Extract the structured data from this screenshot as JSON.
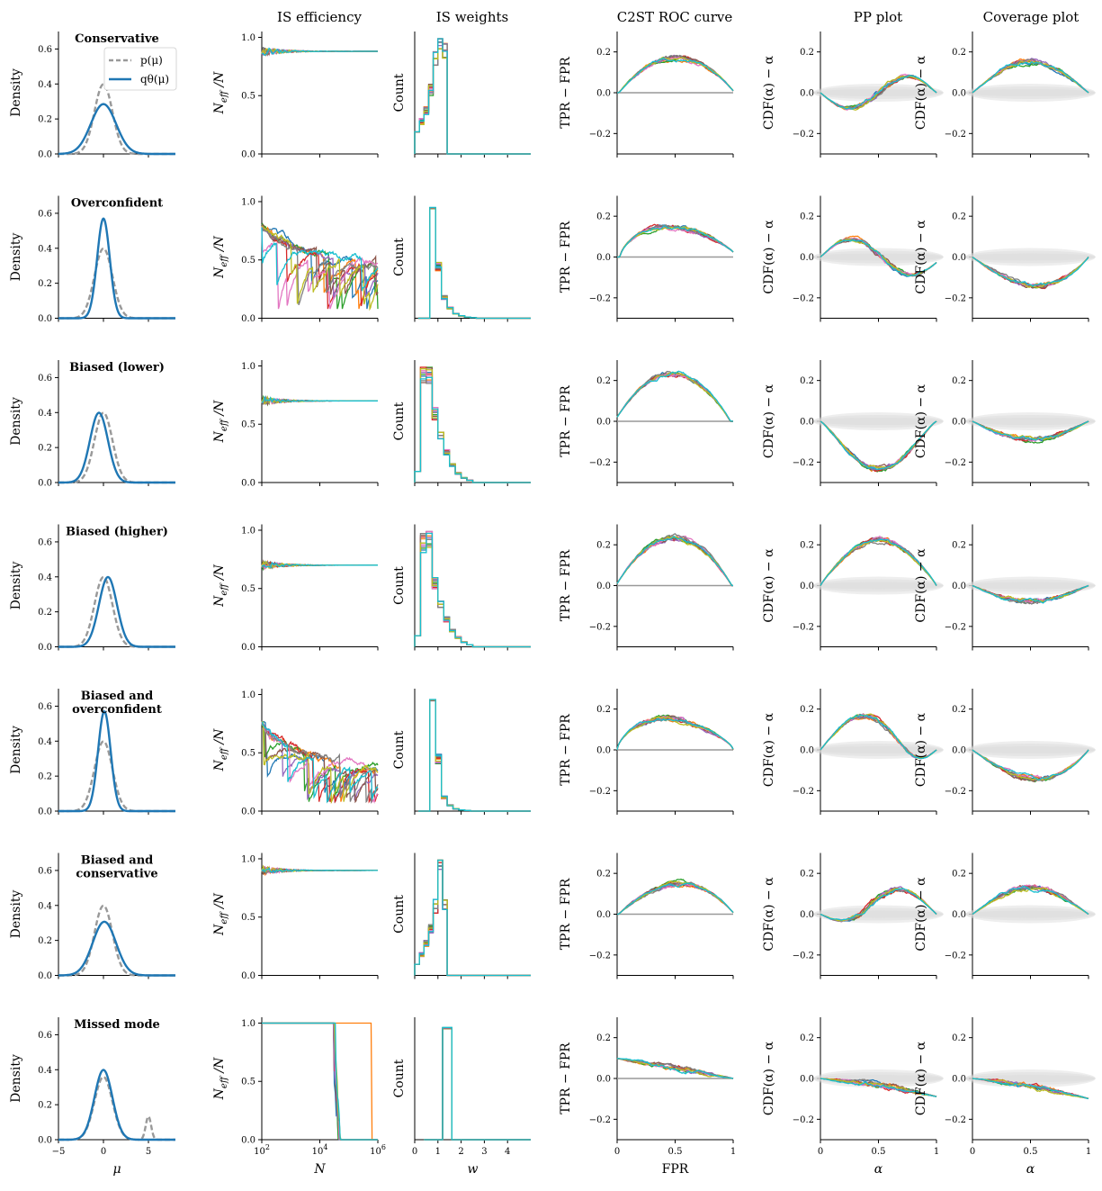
{
  "colors": {
    "prior": "#999999",
    "posterior": "#1f77b4",
    "zero_line": "#999999",
    "band": "#d9d9d9",
    "palette": [
      "#1f77b4",
      "#ff7f0e",
      "#2ca02c",
      "#d62728",
      "#9467bd",
      "#8c564b",
      "#e377c2",
      "#7f7f7f",
      "#bcbd22",
      "#17becf"
    ]
  },
  "column_titles": [
    "",
    "IS efficiency",
    "IS weights",
    "C2ST ROC curve",
    "PP plot",
    "Coverage plot"
  ],
  "legend": {
    "prior": "p(μ)",
    "posterior": "qθ(μ)"
  },
  "rows": [
    {
      "title": [
        "Conservative"
      ]
    },
    {
      "title": [
        "Overconfident"
      ]
    },
    {
      "title": [
        "Biased (lower)"
      ]
    },
    {
      "title": [
        "Biased (higher)"
      ]
    },
    {
      "title": [
        "Biased and",
        "overconfident"
      ]
    },
    {
      "title": [
        "Biased and",
        "conservative"
      ]
    },
    {
      "title": [
        "Missed mode"
      ]
    }
  ],
  "chart_data": [
    {
      "type": "line",
      "panel": "density",
      "ylabel": "Density",
      "xlabel": "μ",
      "xlim": [
        -5,
        8
      ],
      "ylim": [
        0,
        0.7
      ],
      "xticks": [
        "−5",
        "0",
        "5"
      ],
      "yticks": [
        "0.0",
        "0.2",
        "0.4",
        "0.6"
      ],
      "prior": "N(0, 1)",
      "series_by_row": [
        {
          "name": "qθ(μ)",
          "mean": 0,
          "sd": 1.4
        },
        {
          "name": "qθ(μ)",
          "mean": 0,
          "sd": 0.7
        },
        {
          "name": "qθ(μ)",
          "mean": -0.5,
          "sd": 1.0
        },
        {
          "name": "qθ(μ)",
          "mean": 0.5,
          "sd": 1.0
        },
        {
          "name": "qθ(μ)",
          "mean": 0.1,
          "sd": 0.7
        },
        {
          "name": "qθ(μ)",
          "mean": 0.1,
          "sd": 1.3
        },
        {
          "name": "qθ(μ)",
          "mean": 0,
          "sd": 1.0
        }
      ],
      "missed_mode_prior": {
        "weights": [
          0.9,
          0.1
        ],
        "means": [
          0,
          5
        ],
        "sds": [
          1,
          0.3
        ]
      }
    },
    {
      "type": "line",
      "panel": "is_efficiency",
      "ylabel": "Neff/N",
      "xlabel": "N",
      "xscale": "log",
      "xlim": [
        100,
        1000000
      ],
      "ylim": [
        0,
        1.05
      ],
      "yticks": [
        "0.0",
        "0.5",
        "1.0"
      ],
      "series_count": 10,
      "asymptote_by_row": [
        0.88,
        0.45,
        0.7,
        0.7,
        0.35,
        0.9,
        null
      ]
    },
    {
      "type": "bar",
      "panel": "is_weights",
      "ylabel": "Count",
      "xlabel": "w",
      "xlim": [
        0,
        5
      ],
      "xticks": [
        "0",
        "1",
        "2",
        "3",
        "4"
      ],
      "series_count": 10
    },
    {
      "type": "line",
      "panel": "c2st_roc",
      "ylabel": "TPR − FPR",
      "xlabel": "FPR",
      "xlim": [
        0,
        1
      ],
      "ylim": [
        -0.3,
        0.3
      ],
      "xticks": [
        "0",
        "0.5",
        "1"
      ],
      "yticks": [
        "−0.2",
        "0.0",
        "0.2"
      ],
      "series_count": 10,
      "peak_by_row": [
        0.18,
        0.19,
        0.24,
        0.24,
        0.19,
        0.15,
        0.1
      ]
    },
    {
      "type": "line",
      "panel": "pp_plot",
      "ylabel": "CDF(α) − α",
      "xlabel": "α",
      "xlim": [
        0,
        1
      ],
      "ylim": [
        -0.3,
        0.3
      ],
      "xticks": [
        "0",
        "0.5",
        "1"
      ],
      "yticks": [
        "−0.2",
        "0.0",
        "0.2"
      ],
      "series_count": 10
    },
    {
      "type": "line",
      "panel": "coverage_plot",
      "ylabel": "CDF(α) − α",
      "xlabel": "α",
      "xlim": [
        0,
        1
      ],
      "ylim": [
        -0.3,
        0.3
      ],
      "xticks": [
        "0",
        "0.5",
        "1"
      ],
      "yticks": [
        "−0.2",
        "0.0",
        "0.2"
      ],
      "series_count": 10
    }
  ]
}
